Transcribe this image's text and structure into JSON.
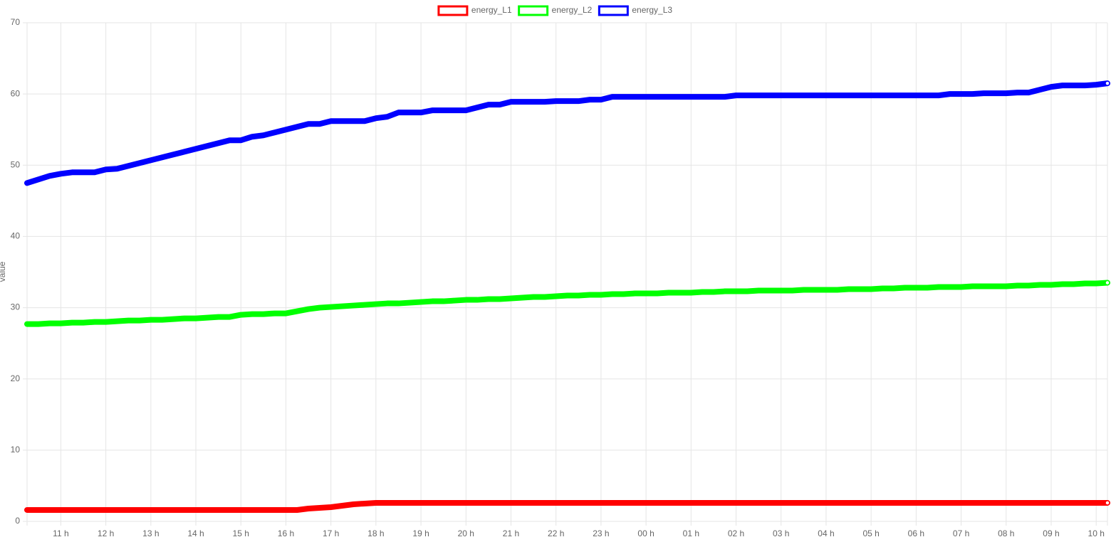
{
  "chart_data": {
    "type": "line",
    "y_label": "value",
    "categories": [
      null,
      null,
      null,
      "11 h",
      null,
      null,
      null,
      "12 h",
      null,
      null,
      null,
      "13 h",
      null,
      null,
      null,
      "14 h",
      null,
      null,
      null,
      "15 h",
      null,
      null,
      null,
      "16 h",
      null,
      null,
      null,
      "17 h",
      null,
      null,
      null,
      "18 h",
      null,
      null,
      null,
      "19 h",
      null,
      null,
      null,
      "20 h",
      null,
      null,
      null,
      "21 h",
      null,
      null,
      null,
      "22 h",
      null,
      null,
      null,
      "23 h",
      null,
      null,
      null,
      "00 h",
      null,
      null,
      null,
      "01 h",
      null,
      null,
      null,
      "02 h",
      null,
      null,
      null,
      "03 h",
      null,
      null,
      null,
      "04 h",
      null,
      null,
      null,
      "05 h",
      null,
      null,
      null,
      "06 h",
      null,
      null,
      null,
      "07 h",
      null,
      null,
      null,
      "08 h",
      null,
      null,
      null,
      "09 h",
      null,
      null,
      null,
      "10 h",
      null
    ],
    "series": [
      {
        "name": "energy_L1",
        "color": "#ff0000",
        "values": [
          1.6,
          1.6,
          1.6,
          1.6,
          1.6,
          1.6,
          1.6,
          1.6,
          1.6,
          1.6,
          1.6,
          1.6,
          1.6,
          1.6,
          1.6,
          1.6,
          1.6,
          1.6,
          1.6,
          1.6,
          1.6,
          1.6,
          1.6,
          1.6,
          1.6,
          1.8,
          1.9,
          2.0,
          2.2,
          2.4,
          2.5,
          2.6,
          2.6,
          2.6,
          2.6,
          2.6,
          2.6,
          2.6,
          2.6,
          2.6,
          2.6,
          2.6,
          2.6,
          2.6,
          2.6,
          2.6,
          2.6,
          2.6,
          2.6,
          2.6,
          2.6,
          2.6,
          2.6,
          2.6,
          2.6,
          2.6,
          2.6,
          2.6,
          2.6,
          2.6,
          2.6,
          2.6,
          2.6,
          2.6,
          2.6,
          2.6,
          2.6,
          2.6,
          2.6,
          2.6,
          2.6,
          2.6,
          2.6,
          2.6,
          2.6,
          2.6,
          2.6,
          2.6,
          2.6,
          2.6,
          2.6,
          2.6,
          2.6,
          2.6,
          2.6,
          2.6,
          2.6,
          2.6,
          2.6,
          2.6,
          2.6,
          2.6,
          2.6,
          2.6,
          2.6,
          2.6,
          2.6
        ]
      },
      {
        "name": "energy_L2",
        "color": "#00ff00",
        "values": [
          27.7,
          27.7,
          27.8,
          27.8,
          27.9,
          27.9,
          28.0,
          28.0,
          28.1,
          28.2,
          28.2,
          28.3,
          28.3,
          28.4,
          28.5,
          28.5,
          28.6,
          28.7,
          28.7,
          29.0,
          29.1,
          29.1,
          29.2,
          29.2,
          29.5,
          29.8,
          30.0,
          30.1,
          30.2,
          30.3,
          30.4,
          30.5,
          30.6,
          30.6,
          30.7,
          30.8,
          30.9,
          30.9,
          31.0,
          31.1,
          31.1,
          31.2,
          31.2,
          31.3,
          31.4,
          31.5,
          31.5,
          31.6,
          31.7,
          31.7,
          31.8,
          31.8,
          31.9,
          31.9,
          32.0,
          32.0,
          32.0,
          32.1,
          32.1,
          32.1,
          32.2,
          32.2,
          32.3,
          32.3,
          32.3,
          32.4,
          32.4,
          32.4,
          32.4,
          32.5,
          32.5,
          32.5,
          32.5,
          32.6,
          32.6,
          32.6,
          32.7,
          32.7,
          32.8,
          32.8,
          32.8,
          32.9,
          32.9,
          32.9,
          33.0,
          33.0,
          33.0,
          33.0,
          33.1,
          33.1,
          33.2,
          33.2,
          33.3,
          33.3,
          33.4,
          33.4,
          33.5
        ]
      },
      {
        "name": "energy_L3",
        "color": "#0000ff",
        "values": [
          47.5,
          48.0,
          48.5,
          48.8,
          49.0,
          49.0,
          49.0,
          49.4,
          49.5,
          49.9,
          50.3,
          50.7,
          51.1,
          51.5,
          51.9,
          52.3,
          52.7,
          53.1,
          53.5,
          53.5,
          54.0,
          54.2,
          54.6,
          55.0,
          55.4,
          55.8,
          55.8,
          56.2,
          56.2,
          56.2,
          56.2,
          56.6,
          56.8,
          57.4,
          57.4,
          57.4,
          57.7,
          57.7,
          57.7,
          57.7,
          58.1,
          58.5,
          58.5,
          58.9,
          58.9,
          58.9,
          58.9,
          59.0,
          59.0,
          59.0,
          59.2,
          59.2,
          59.6,
          59.6,
          59.6,
          59.6,
          59.6,
          59.6,
          59.6,
          59.6,
          59.6,
          59.6,
          59.6,
          59.8,
          59.8,
          59.8,
          59.8,
          59.8,
          59.8,
          59.8,
          59.8,
          59.8,
          59.8,
          59.8,
          59.8,
          59.8,
          59.8,
          59.8,
          59.8,
          59.8,
          59.8,
          59.8,
          60.0,
          60.0,
          60.0,
          60.1,
          60.1,
          60.1,
          60.2,
          60.2,
          60.6,
          61.0,
          61.2,
          61.2,
          61.2,
          61.3,
          61.5
        ]
      }
    ],
    "ylim": [
      0,
      70
    ],
    "yticks": [
      0,
      10,
      20,
      30,
      40,
      50,
      60,
      70
    ],
    "grid": true,
    "legend": "top"
  }
}
